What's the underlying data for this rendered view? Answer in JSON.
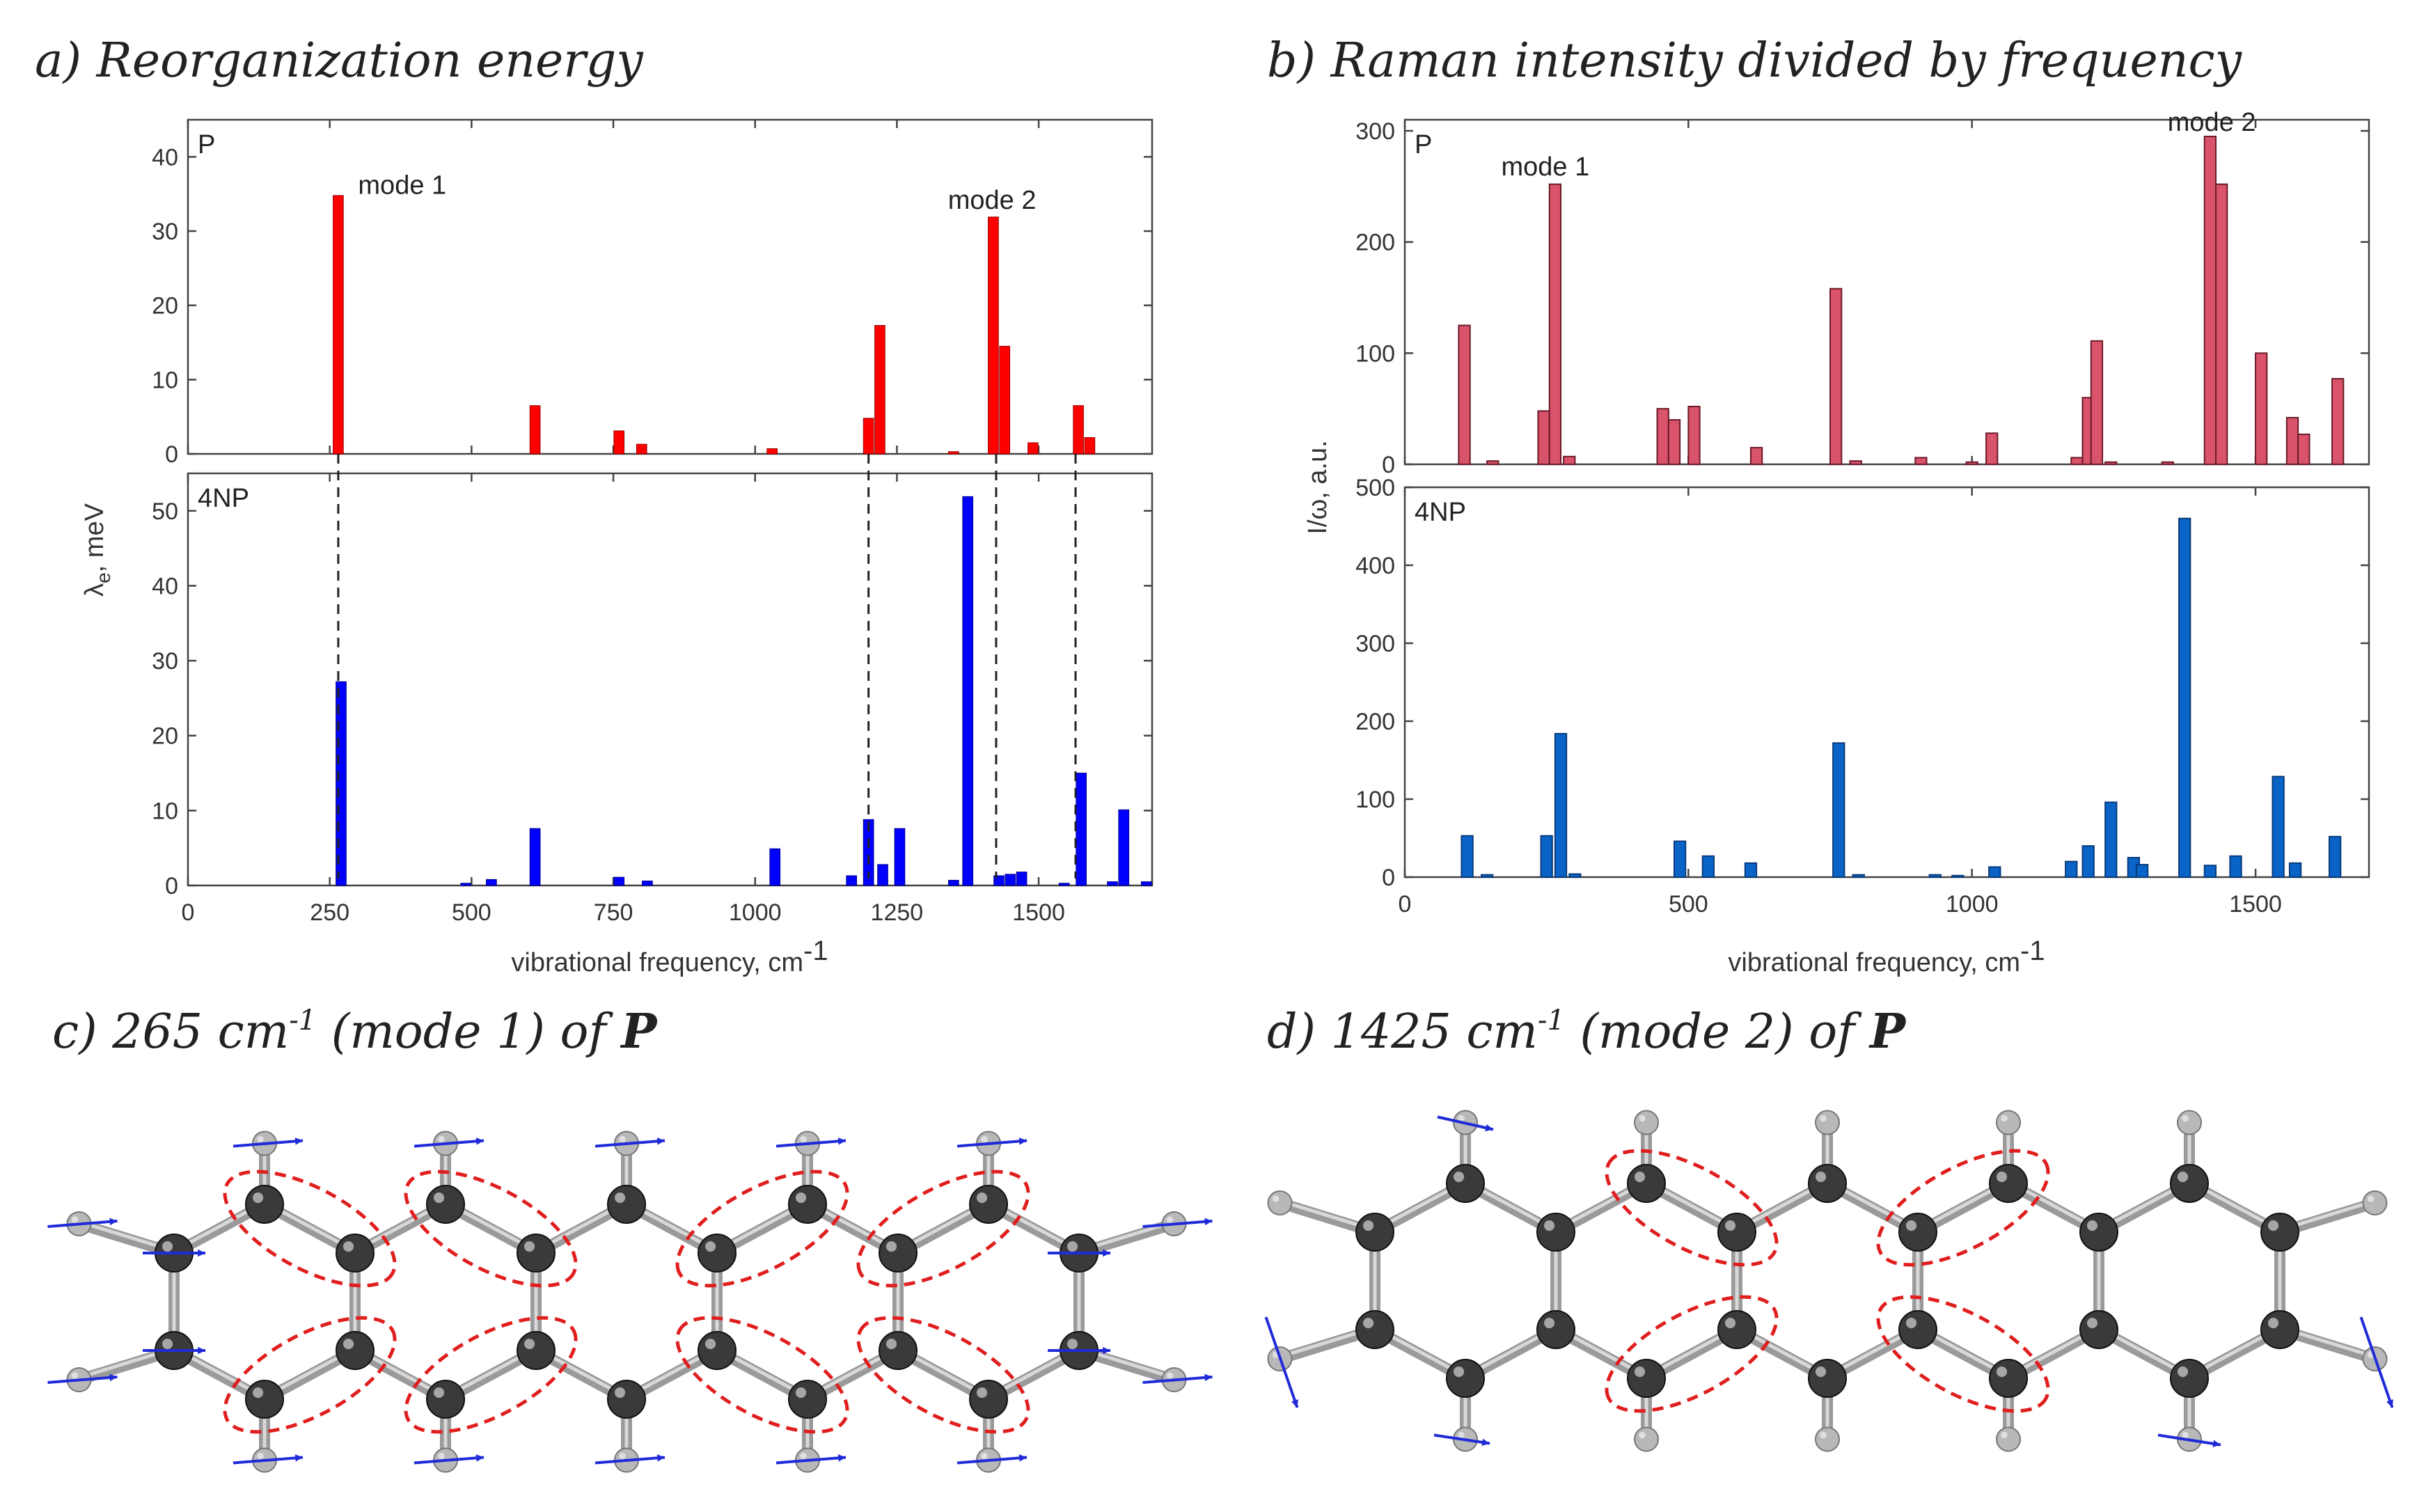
{
  "titles": {
    "a": "a) Reorganization energy",
    "b": "b) Raman intensity divided by frequency",
    "c_prefix": "c) 265 cm",
    "c_sup": "-1",
    "c_middle": " (mode 1) of ",
    "c_bold": "P",
    "d_prefix": "d) 1425 cm",
    "d_sup": "-1",
    "d_middle": " (mode 2) of ",
    "d_bold": "P"
  },
  "colors": {
    "a_top": "#ff0000",
    "a_bottom": "#0000ff",
    "b_top": "#d9536b",
    "b_bottom": "#0a64c8",
    "ellipse": "#e01e1e",
    "arrow": "#1f2bd8",
    "carbon": "#3a3a3a",
    "hydrogen": "#b8b8b8"
  },
  "chart_data": [
    {
      "id": "a",
      "type": "bar",
      "title": "a) Reorganization energy",
      "xlabel": "vibrational frequency, cm",
      "xlabel_sup": "-1",
      "ylabel": "λe, meV",
      "xlim": [
        0,
        1700
      ],
      "xticks": [
        0,
        250,
        500,
        750,
        1000,
        1250,
        1500
      ],
      "panels": [
        {
          "name": "P",
          "ylim": [
            0,
            45
          ],
          "yticks": [
            0,
            10,
            20,
            30,
            40
          ],
          "series": [
            {
              "name": "P",
              "x": [
                265,
                612,
                760,
                800,
                1030,
                1200,
                1220,
                1350,
                1420,
                1440,
                1490,
                1570,
                1590
              ],
              "values": [
                34.8,
                6.5,
                3.1,
                1.3,
                0.7,
                4.8,
                17.3,
                0.3,
                31.9,
                14.5,
                1.5,
                6.5,
                2.2
              ]
            }
          ],
          "annotations": [
            {
              "text": "mode 1",
              "x": 300,
              "y": 35
            },
            {
              "text": "mode 2",
              "x": 1340,
              "y": 33
            }
          ]
        },
        {
          "name": "4NP",
          "ylim": [
            0,
            55
          ],
          "yticks": [
            0,
            10,
            20,
            30,
            40,
            50
          ],
          "series": [
            {
              "name": "4NP",
              "x": [
                270,
                490,
                535,
                612,
                760,
                810,
                1035,
                1170,
                1200,
                1225,
                1255,
                1350,
                1375,
                1430,
                1450,
                1470,
                1545,
                1575,
                1630,
                1650,
                1690
              ],
              "values": [
                27.2,
                0.3,
                0.8,
                7.6,
                1.1,
                0.6,
                4.9,
                1.3,
                8.8,
                2.8,
                7.6,
                0.7,
                51.9,
                1.3,
                1.5,
                1.8,
                0.3,
                15.0,
                0.5,
                10.1,
                0.5
              ]
            }
          ],
          "dashed_x": [
            265,
            1200,
            1425,
            1565
          ]
        }
      ]
    },
    {
      "id": "b",
      "type": "bar",
      "title": "b) Raman intensity divided by frequency",
      "xlabel": "vibrational frequency, cm",
      "xlabel_sup": "-1",
      "ylabel": "I/ω, a.u.",
      "xlim": [
        0,
        1700
      ],
      "xticks": [
        0,
        500,
        1000,
        1500
      ],
      "panels": [
        {
          "name": "P",
          "ylim": [
            0,
            310
          ],
          "yticks": [
            0,
            100,
            200,
            300
          ],
          "series": [
            {
              "name": "P",
              "x": [
                105,
                155,
                245,
                265,
                290,
                455,
                475,
                510,
                620,
                760,
                795,
                910,
                1000,
                1035,
                1185,
                1205,
                1220,
                1245,
                1345,
                1420,
                1440,
                1510,
                1565,
                1585,
                1645
              ],
              "values": [
                125,
                3,
                48,
                252,
                7,
                50,
                40,
                52,
                15,
                158,
                3,
                6,
                2,
                28,
                6,
                60,
                111,
                2,
                2,
                295,
                252,
                100,
                42,
                27,
                77
              ]
            }
          ],
          "annotations": [
            {
              "text": "mode 1",
              "x": 170,
              "y": 260
            },
            {
              "text": "mode 2",
              "x": 1345,
              "y": 300
            }
          ]
        },
        {
          "name": "4NP",
          "ylim": [
            0,
            500
          ],
          "yticks": [
            0,
            100,
            200,
            300,
            400,
            500
          ],
          "series": [
            {
              "name": "4NP",
              "x": [
                110,
                145,
                250,
                275,
                300,
                485,
                535,
                610,
                765,
                800,
                935,
                975,
                1040,
                1175,
                1205,
                1245,
                1285,
                1300,
                1375,
                1420,
                1465,
                1540,
                1570,
                1640
              ],
              "values": [
                53,
                3,
                53,
                184,
                4,
                46,
                27,
                18,
                172,
                3,
                3,
                2,
                13,
                20,
                40,
                96,
                25,
                16,
                460,
                15,
                27,
                129,
                18,
                52
              ]
            }
          ]
        }
      ]
    }
  ]
}
